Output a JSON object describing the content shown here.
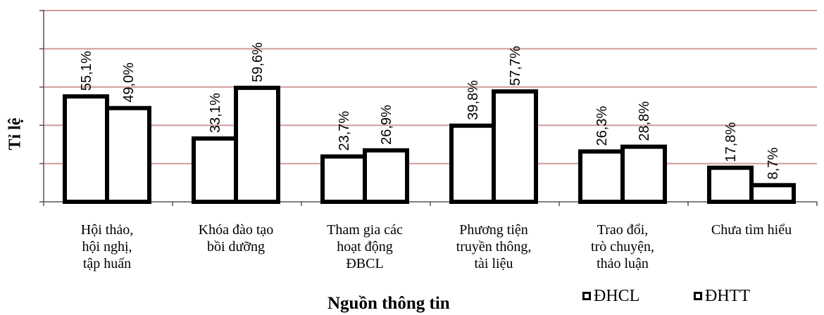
{
  "chart_data": {
    "type": "bar",
    "categories": [
      "Hội thảo,\nhội nghị,\ntập huấn",
      "Khóa đào tạo\nbồi dưỡng",
      "Tham gia các\nhoạt động\nĐBCL",
      "Phương tiện\ntruyền thông,\ntài liệu",
      "Trao đổi,\ntrò chuyện,\nthảo luận",
      "Chưa tìm hiểu"
    ],
    "series": [
      {
        "name": "ĐHCL",
        "values": [
          55.1,
          33.1,
          23.7,
          39.8,
          26.3,
          17.8
        ],
        "labels": [
          "55,1%",
          "33,1%",
          "23,7%",
          "39,8%",
          "26,3%",
          "17,8%"
        ]
      },
      {
        "name": "ĐHTT",
        "values": [
          49.0,
          59.6,
          26.9,
          57.7,
          28.8,
          8.7
        ],
        "labels": [
          "49,0%",
          "59,6%",
          "26,9%",
          "57,7%",
          "28,8%",
          "8,7%"
        ]
      }
    ],
    "xlabel": "Nguồn thông tin",
    "ylabel": "Tỉ lệ",
    "ylim": [
      0,
      100
    ],
    "grid": true,
    "legend_position": "bottom-right",
    "colors": {
      "gridline": "#d19a9a",
      "bar_fill": "#ffffff",
      "bar_border": "#000000"
    }
  }
}
